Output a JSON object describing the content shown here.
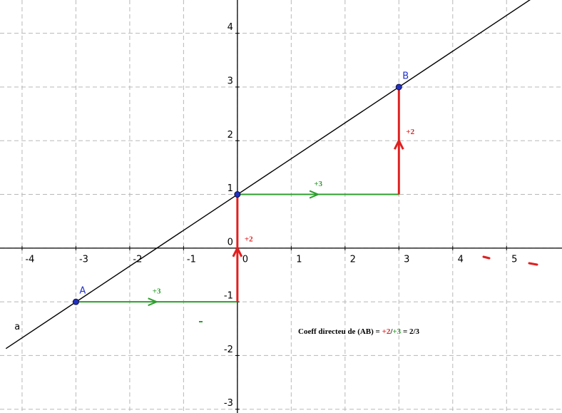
{
  "chart_data": {
    "type": "line",
    "xlim": [
      -4.41,
      6.03
    ],
    "ylim": [
      -3.07,
      4.62
    ],
    "xticks": [
      -4,
      -3,
      -2,
      -1,
      0,
      1,
      2,
      3,
      4,
      5
    ],
    "yticks": [
      -3,
      -2,
      -1,
      0,
      1,
      2,
      3,
      4
    ],
    "grid": true,
    "series": [
      {
        "name": "a",
        "color": "#000000",
        "x": [
          -4.3,
          5.46
        ],
        "values": [
          -1.87,
          4.64
        ]
      }
    ],
    "points": [
      {
        "label": "A",
        "x": -3,
        "y": -1
      },
      {
        "label": "B",
        "x": 3,
        "y": 3
      },
      {
        "x": 0,
        "y": 1
      }
    ],
    "arrows": [
      {
        "label": "+3",
        "color": "#2e9e2e",
        "x": [
          -3,
          0
        ],
        "y": [
          -1,
          -1
        ]
      },
      {
        "label": "+2",
        "color": "#e02020",
        "x": [
          0,
          0
        ],
        "y": [
          -1,
          1
        ]
      },
      {
        "label": "+3",
        "color": "#2e9e2e",
        "x": [
          0,
          3
        ],
        "y": [
          1,
          1
        ]
      },
      {
        "label": "+2",
        "color": "#e02020",
        "x": [
          3,
          3
        ],
        "y": [
          1,
          3
        ]
      }
    ],
    "annotation": {
      "parts": [
        {
          "text": "Coeff directeu de (AB) = ",
          "color": "#000000"
        },
        {
          "text": "+2",
          "color": "#e02020"
        },
        {
          "text": "/",
          "color": "#000000"
        },
        {
          "text": "+3",
          "color": "#2e9e2e"
        },
        {
          "text": " = 2/3",
          "color": "#000000"
        }
      ]
    }
  }
}
